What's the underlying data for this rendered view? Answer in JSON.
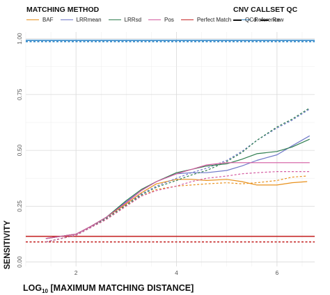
{
  "legend": {
    "method_title": "MATCHING METHOD",
    "qc_title": "CNV CALLSET QC",
    "methods": [
      {
        "label": "BAF",
        "color": "#E8901B"
      },
      {
        "label": "LRRmean",
        "color": "#6F78C8"
      },
      {
        "label": "LRRsd",
        "color": "#2E7D4F"
      },
      {
        "label": "Pos",
        "color": "#D45AA0"
      },
      {
        "label": "Perfect Match",
        "color": "#C62828"
      },
      {
        "label": "Reference",
        "color": "#2F86C8"
      }
    ],
    "qc": [
      {
        "label": "QCd",
        "style": "solid"
      },
      {
        "label": "Raw",
        "style": "dashed"
      }
    ]
  },
  "chart_data": {
    "type": "line",
    "xlabel_main": "LOG",
    "xlabel_sub": "10",
    "xlabel_rest": " [MAXIMUM MATCHING DISTANCE]",
    "ylabel": "SENSITIVITY",
    "xlim": [
      1,
      6.75
    ],
    "ylim": [
      -0.02,
      1.03
    ],
    "x_ticks": [
      2,
      4,
      6
    ],
    "y_ticks": [
      0.0,
      0.25,
      0.5,
      0.75,
      1.0
    ],
    "y_tick_labels": [
      "0.00",
      "0.25",
      "0.50",
      "0.75",
      "1.00"
    ],
    "grid": true,
    "series": [
      {
        "name": "Reference",
        "style": "solid",
        "color": "#2F86C8",
        "x": [
          1,
          6.75
        ],
        "y": [
          0.993,
          0.993
        ]
      },
      {
        "name": "Reference",
        "style": "dashed",
        "color": "#2F86C8",
        "x": [
          1,
          6.75
        ],
        "y": [
          0.987,
          0.987
        ]
      },
      {
        "name": "Perfect Match",
        "style": "solid",
        "color": "#C62828",
        "x": [
          1,
          6.75
        ],
        "y": [
          0.115,
          0.115
        ]
      },
      {
        "name": "Perfect Match",
        "style": "dashed",
        "color": "#C62828",
        "x": [
          1,
          6.75
        ],
        "y": [
          0.09,
          0.09
        ]
      },
      {
        "name": "BAF",
        "style": "solid",
        "color": "#E8901B",
        "x": [
          1.4,
          2,
          2.3,
          2.6,
          3,
          3.3,
          3.6,
          4,
          4.3,
          4.6,
          5,
          5.3,
          5.6,
          6,
          6.3,
          6.6
        ],
        "y": [
          0.105,
          0.125,
          0.16,
          0.2,
          0.26,
          0.31,
          0.35,
          0.37,
          0.37,
          0.365,
          0.37,
          0.36,
          0.345,
          0.345,
          0.355,
          0.36
        ]
      },
      {
        "name": "BAF",
        "style": "dashed",
        "color": "#E8901B",
        "x": [
          1.4,
          2,
          2.3,
          2.6,
          3,
          3.3,
          3.6,
          4,
          4.3,
          4.6,
          5,
          5.3,
          5.6,
          6,
          6.3,
          6.6
        ],
        "y": [
          0.09,
          0.12,
          0.155,
          0.19,
          0.25,
          0.295,
          0.325,
          0.34,
          0.345,
          0.35,
          0.355,
          0.35,
          0.355,
          0.365,
          0.38,
          0.385
        ]
      },
      {
        "name": "LRRmean",
        "style": "solid",
        "color": "#6F78C8",
        "x": [
          1.4,
          2,
          2.3,
          2.6,
          3,
          3.3,
          3.6,
          4,
          4.3,
          4.6,
          5,
          5.3,
          5.6,
          6,
          6.3,
          6.65
        ],
        "y": [
          0.105,
          0.125,
          0.16,
          0.2,
          0.27,
          0.32,
          0.36,
          0.395,
          0.4,
          0.4,
          0.41,
          0.43,
          0.455,
          0.48,
          0.52,
          0.565
        ]
      },
      {
        "name": "LRRmean",
        "style": "dashed",
        "color": "#6F78C8",
        "x": [
          1.4,
          2,
          2.3,
          2.6,
          3,
          3.3,
          3.6,
          4,
          4.3,
          4.6,
          5,
          5.3,
          5.6,
          6,
          6.3,
          6.65
        ],
        "y": [
          0.09,
          0.12,
          0.155,
          0.195,
          0.255,
          0.305,
          0.34,
          0.375,
          0.4,
          0.42,
          0.455,
          0.495,
          0.545,
          0.6,
          0.635,
          0.685
        ]
      },
      {
        "name": "LRRsd",
        "style": "solid",
        "color": "#2E7D4F",
        "x": [
          1.4,
          2,
          2.3,
          2.6,
          3,
          3.3,
          3.6,
          4,
          4.3,
          4.6,
          5,
          5.3,
          5.6,
          6,
          6.3,
          6.65
        ],
        "y": [
          0.105,
          0.125,
          0.16,
          0.2,
          0.275,
          0.325,
          0.36,
          0.4,
          0.415,
          0.43,
          0.44,
          0.46,
          0.485,
          0.495,
          0.515,
          0.55
        ]
      },
      {
        "name": "LRRsd",
        "style": "dashed",
        "color": "#2E7D4F",
        "x": [
          1.4,
          2,
          2.3,
          2.6,
          3,
          3.3,
          3.6,
          4,
          4.3,
          4.6,
          5,
          5.3,
          5.6,
          6,
          6.3,
          6.65
        ],
        "y": [
          0.09,
          0.12,
          0.155,
          0.195,
          0.255,
          0.3,
          0.335,
          0.365,
          0.39,
          0.41,
          0.45,
          0.49,
          0.545,
          0.605,
          0.64,
          0.69
        ]
      },
      {
        "name": "Pos",
        "style": "solid",
        "color": "#D45AA0",
        "x": [
          1.4,
          2,
          2.3,
          2.6,
          3,
          3.3,
          3.6,
          4,
          4.3,
          4.6,
          5,
          5.3,
          5.6,
          6,
          6.3,
          6.65
        ],
        "y": [
          0.105,
          0.125,
          0.16,
          0.2,
          0.265,
          0.32,
          0.36,
          0.395,
          0.415,
          0.435,
          0.445,
          0.445,
          0.445,
          0.445,
          0.445,
          0.445
        ]
      },
      {
        "name": "Pos",
        "style": "dashed",
        "color": "#D45AA0",
        "x": [
          1.4,
          2,
          2.3,
          2.6,
          3,
          3.3,
          3.6,
          4,
          4.3,
          4.6,
          5,
          5.3,
          5.6,
          6,
          6.3,
          6.65
        ],
        "y": [
          0.09,
          0.12,
          0.155,
          0.19,
          0.25,
          0.295,
          0.32,
          0.34,
          0.36,
          0.375,
          0.385,
          0.395,
          0.4,
          0.405,
          0.405,
          0.405
        ]
      }
    ]
  }
}
